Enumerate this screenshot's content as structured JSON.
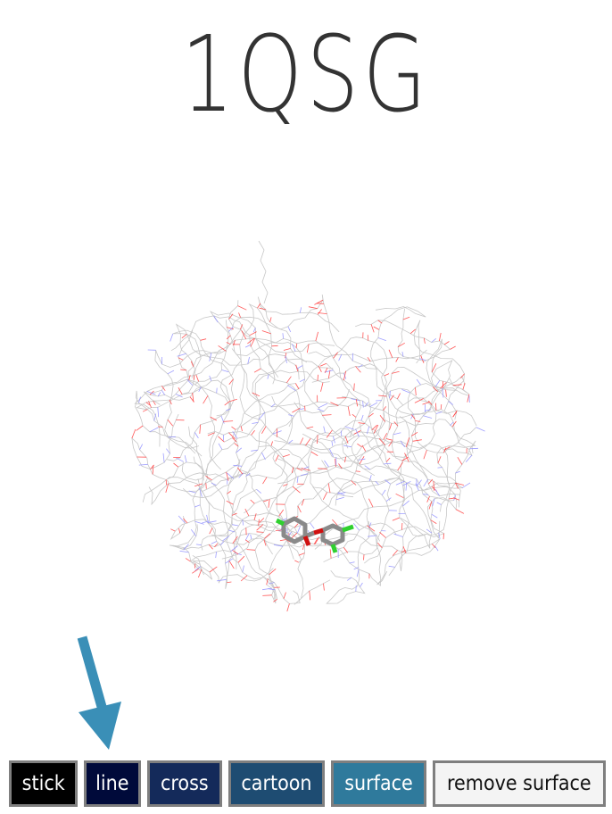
{
  "page": {
    "title": "1QSG"
  },
  "viewer": {
    "molecule_colors": {
      "backbone": "#c8c8c8",
      "oxygen": "#ff3a3a",
      "nitrogen": "#8f8fff",
      "ligand_carbon": "#8a8a8a",
      "ligand_chlorine": "#2fd02f",
      "ligand_oxygen": "#d01010"
    }
  },
  "annotation": {
    "arrow_color": "#3a8fb7",
    "arrow_icon": "down-arrow-icon"
  },
  "toolbar": {
    "buttons": [
      {
        "label": "stick",
        "color": "#000000"
      },
      {
        "label": "line",
        "color": "#000a3a"
      },
      {
        "label": "cross",
        "color": "#142a5a"
      },
      {
        "label": "cartoon",
        "color": "#1e4c72"
      },
      {
        "label": "surface",
        "color": "#2f7a9c"
      },
      {
        "label": "remove surface",
        "color": "#f4f4f4"
      }
    ]
  }
}
